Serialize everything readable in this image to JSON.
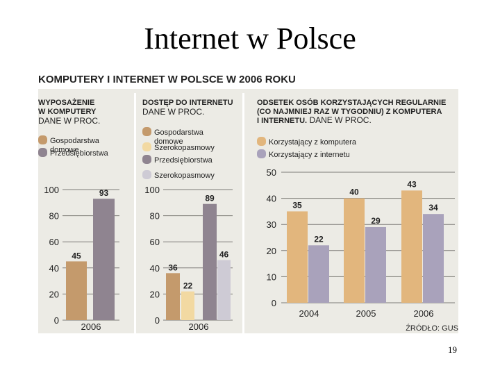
{
  "slide": {
    "title": "Internet w Polsce",
    "page_number": "19"
  },
  "infographic": {
    "title": "KOMPUTERY I INTERNET W POLSCE W 2006 ROKU",
    "source": "ŹRÓDŁO: GUS",
    "colors": {
      "background": "#ecebe5",
      "divider": "#ffffff",
      "grid": "#7d7b76",
      "text": "#222222",
      "households_computers": "#c49a6c",
      "enterprises": "#8f8490",
      "households_broadband": "#f2d9a2",
      "enterprises_broadband": "#cecbd5",
      "computer_users": "#e2b67d",
      "internet_users": "#a9a2bb"
    }
  },
  "chart_data": [
    {
      "type": "bar",
      "title_lines": [
        "WYPOSAŻENIE",
        "W KOMPUTERY"
      ],
      "subtitle": "DANE W PROC.",
      "categories": [
        "2006"
      ],
      "ylim": [
        0,
        100
      ],
      "yticks": [
        "0",
        "20",
        "40",
        "60",
        "80",
        "100"
      ],
      "legend": [
        "Gospodarstwa domowe",
        "Przedsiębiorstwa"
      ],
      "series": [
        {
          "name": "Gospodarstwa domowe",
          "values": [
            45
          ]
        },
        {
          "name": "Przedsiębiorstwa",
          "values": [
            93
          ]
        }
      ]
    },
    {
      "type": "bar",
      "title_lines": [
        "DOSTĘP DO INTERNETU"
      ],
      "subtitle": "DANE W PROC.",
      "categories": [
        "2006"
      ],
      "ylim": [
        0,
        100
      ],
      "yticks": [
        "0",
        "20",
        "40",
        "60",
        "80",
        "100"
      ],
      "legend": [
        "Gospodarstwa domowe",
        "Szerokopasmowy",
        "Przedsiębiorstwa",
        "Szerokopasmowy"
      ],
      "series": [
        {
          "name": "Gospodarstwa domowe",
          "values": [
            36
          ]
        },
        {
          "name": "Szerokopasmowy",
          "values": [
            22
          ]
        },
        {
          "name": "Przedsiębiorstwa",
          "values": [
            89
          ]
        },
        {
          "name": "Szerokopasmowy",
          "values": [
            46
          ]
        }
      ]
    },
    {
      "type": "bar",
      "title_lines": [
        "ODSETEK OSÓB KORZYSTAJĄCYCH REGULARNIE",
        "(CO NAJMNIEJ RAZ W TYGODNIU) Z KOMPUTERA",
        "I INTERNETU."
      ],
      "subtitle": "DANE W PROC.",
      "categories": [
        "2004",
        "2005",
        "2006"
      ],
      "ylim": [
        0,
        50
      ],
      "yticks": [
        "0",
        "10",
        "20",
        "30",
        "40",
        "50"
      ],
      "legend": [
        "Korzystający z komputera",
        "Korzystający z internetu"
      ],
      "series": [
        {
          "name": "Korzystający z komputera",
          "values": [
            35,
            40,
            43
          ]
        },
        {
          "name": "Korzystający z internetu",
          "values": [
            22,
            29,
            34
          ]
        }
      ]
    }
  ]
}
